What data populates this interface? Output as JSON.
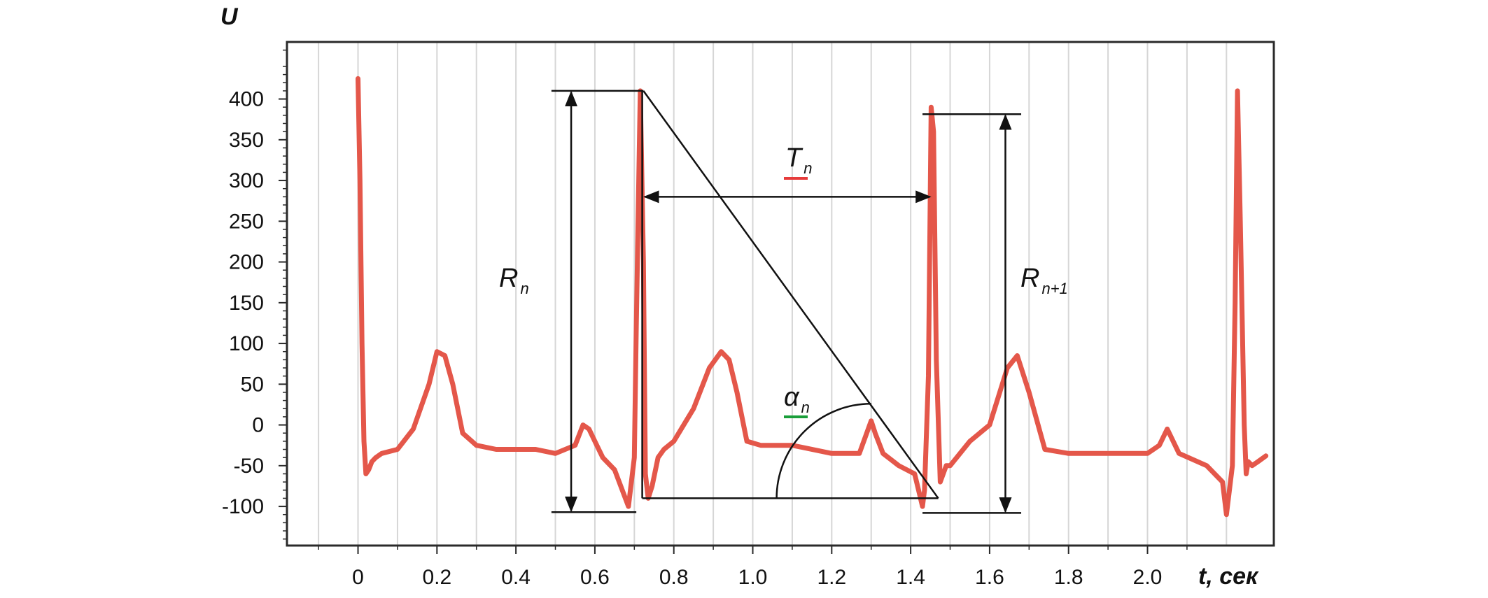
{
  "chart_data": {
    "type": "line",
    "title": "",
    "xlabel": "t, сек",
    "ylabel": "U",
    "xlim": [
      -0.18,
      2.32
    ],
    "ylim": [
      -148,
      470
    ],
    "x_ticks": [
      0,
      0.2,
      0.4,
      0.6,
      0.8,
      1.0,
      1.2,
      1.4,
      1.6,
      1.8,
      2.0
    ],
    "x_tick_labels": [
      "0",
      "0.2",
      "0.4",
      "0.6",
      "0.8",
      "1.0",
      "1.2",
      "1.4",
      "1.6",
      "1.8",
      "2.0"
    ],
    "y_ticks": [
      400,
      350,
      300,
      250,
      200,
      150,
      100,
      50,
      0,
      -50,
      -100
    ],
    "y_tick_labels": [
      "400",
      "350",
      "300",
      "250",
      "200",
      "150",
      "100",
      "50",
      "0",
      "-50",
      "-100"
    ],
    "grid": true,
    "series": [
      {
        "color": "#e4574a",
        "x": [
          0.0,
          0.005,
          0.01,
          0.015,
          0.02,
          0.027,
          0.035,
          0.045,
          0.06,
          0.1,
          0.14,
          0.18,
          0.2,
          0.22,
          0.24,
          0.265,
          0.3,
          0.35,
          0.4,
          0.45,
          0.5,
          0.55,
          0.57,
          0.585,
          0.6,
          0.62,
          0.65,
          0.685,
          0.7,
          0.705,
          0.715,
          0.723,
          0.728,
          0.735,
          0.745,
          0.76,
          0.775,
          0.8,
          0.85,
          0.89,
          0.92,
          0.94,
          0.96,
          0.985,
          1.02,
          1.1,
          1.2,
          1.27,
          1.3,
          1.31,
          1.33,
          1.37,
          1.41,
          1.43,
          1.435,
          1.445,
          1.452,
          1.458,
          1.465,
          1.475,
          1.49,
          1.5,
          1.55,
          1.6,
          1.645,
          1.67,
          1.7,
          1.74,
          1.8,
          1.9,
          2.0,
          2.03,
          2.05,
          2.08,
          2.15,
          2.19,
          2.2,
          2.215,
          2.222,
          2.228,
          2.235,
          2.245,
          2.25,
          2.255,
          2.265,
          2.28,
          2.3
        ],
        "y": [
          425,
          300,
          100,
          -20,
          -60,
          -55,
          -45,
          -40,
          -35,
          -30,
          -5,
          50,
          90,
          85,
          50,
          -10,
          -25,
          -30,
          -30,
          -30,
          -35,
          -25,
          0,
          -5,
          -20,
          -40,
          -55,
          -100,
          -40,
          120,
          410,
          200,
          -60,
          -90,
          -75,
          -40,
          -30,
          -20,
          20,
          70,
          90,
          80,
          40,
          -20,
          -25,
          -25,
          -35,
          -35,
          5,
          -10,
          -35,
          -50,
          -60,
          -100,
          -80,
          60,
          390,
          360,
          80,
          -70,
          -50,
          -50,
          -20,
          0,
          70,
          85,
          40,
          -30,
          -35,
          -35,
          -35,
          -25,
          -5,
          -35,
          -50,
          -70,
          -110,
          -50,
          150,
          410,
          250,
          0,
          -60,
          -45,
          -50,
          -45,
          -38
        ]
      }
    ],
    "annotations": {
      "r_n": {
        "label": "R",
        "sub": "n"
      },
      "r_n1": {
        "label": "R",
        "sub": "n+1"
      },
      "t_n": {
        "label": "T",
        "sub": "n",
        "underline_color": "#e63b3b"
      },
      "alpha_n": {
        "label": "α",
        "sub": "n",
        "underline_color": "#1a9e3a"
      }
    }
  }
}
